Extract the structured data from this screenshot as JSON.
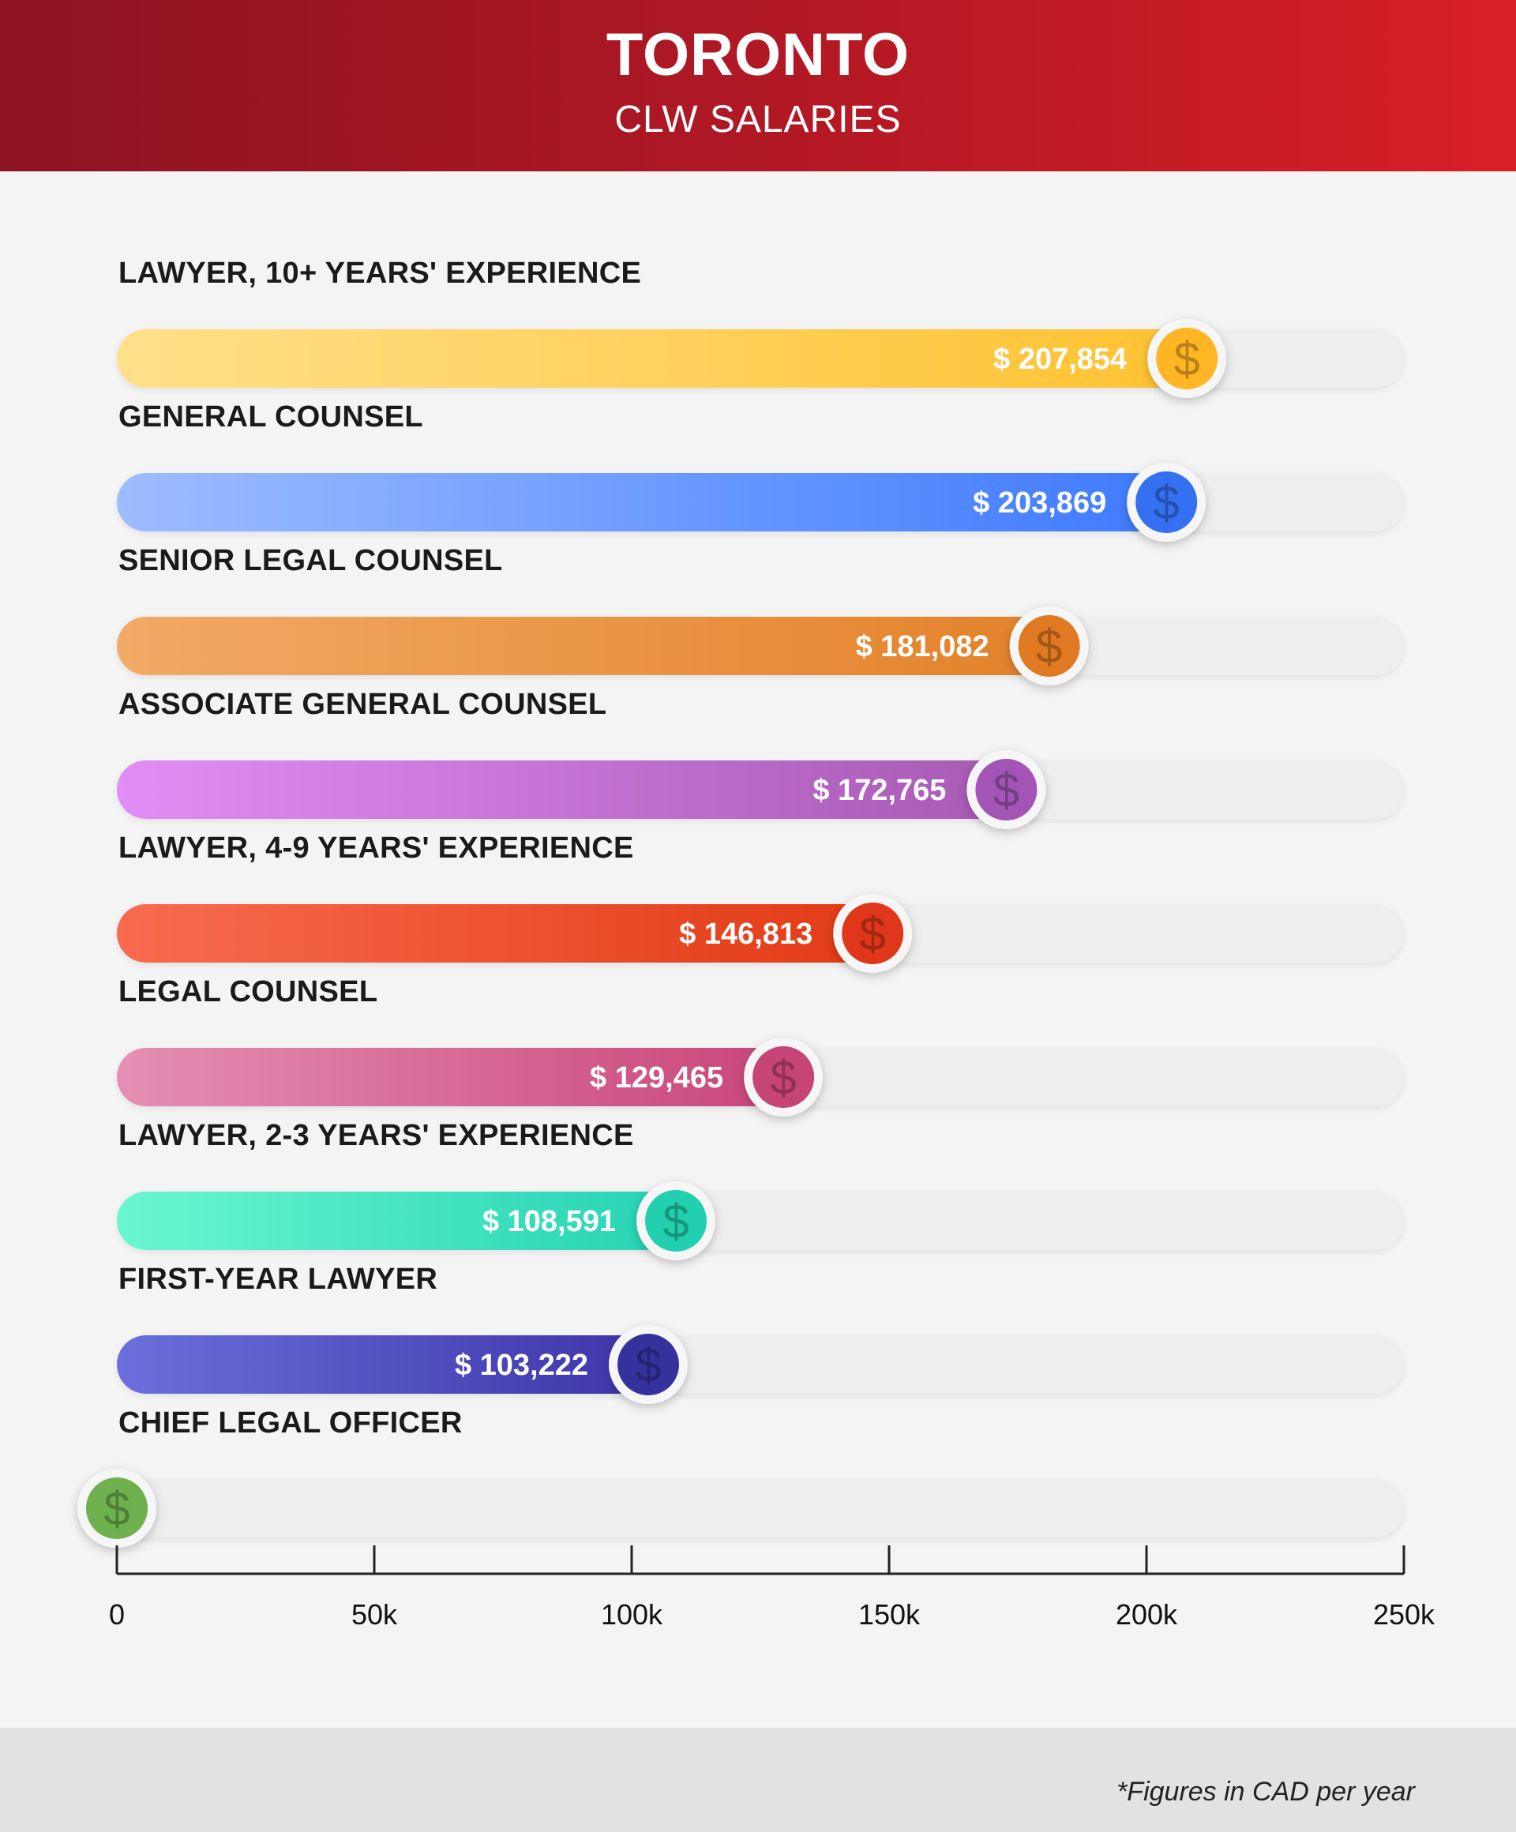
{
  "header": {
    "title": "TORONTO",
    "subtitle": "CLW SALARIES"
  },
  "chart_data": {
    "type": "bar",
    "orientation": "horizontal",
    "title": "TORONTO",
    "subtitle": "CLW SALARIES",
    "xlim": [
      0,
      250000
    ],
    "ticks": [
      {
        "value": 0,
        "label": "0"
      },
      {
        "value": 50000,
        "label": "50k"
      },
      {
        "value": 100000,
        "label": "100k"
      },
      {
        "value": 150000,
        "label": "150k"
      },
      {
        "value": 200000,
        "label": "200k"
      },
      {
        "value": 250000,
        "label": "250k"
      }
    ],
    "bars": [
      {
        "category": "LAWYER, 10+ YEARS' EXPERIENCE",
        "value": 207854,
        "label": "$ 207,854",
        "color_start": "#ffe08a",
        "color_end": "#ffc232",
        "icon_color": "#ffb524"
      },
      {
        "category": "GENERAL COUNSEL",
        "value": 203869,
        "label": "$ 203,869",
        "color_start": "#9ebcff",
        "color_end": "#3f7bff",
        "icon_color": "#3570f2"
      },
      {
        "category": "SENIOR LEGAL COUNSEL",
        "value": 181082,
        "label": "$ 181,082",
        "color_start": "#f2aa66",
        "color_end": "#e3822a",
        "icon_color": "#e07a22"
      },
      {
        "category": "ASSOCIATE GENERAL COUNSEL",
        "value": 172765,
        "label": "$ 172,765",
        "color_start": "#e18df5",
        "color_end": "#a85ab4",
        "icon_color": "#a355b6"
      },
      {
        "category": "LAWYER, 4-9 YEARS' EXPERIENCE",
        "value": 146813,
        "label": "$ 146,813",
        "color_start": "#f86b4e",
        "color_end": "#e23b16",
        "icon_color": "#e0361a"
      },
      {
        "category": "LEGAL COUNSEL",
        "value": 129465,
        "label": "$ 129,465",
        "color_start": "#e58fb4",
        "color_end": "#c9467a",
        "icon_color": "#c64476"
      },
      {
        "category": "LAWYER, 2-3 YEARS' EXPERIENCE",
        "value": 108591,
        "label": "$ 108,591",
        "color_start": "#6af7d0",
        "color_end": "#26d3b3",
        "icon_color": "#22cfae"
      },
      {
        "category": "FIRST-YEAR LAWYER",
        "value": 103222,
        "label": "$ 103,222",
        "color_start": "#6b6fdc",
        "color_end": "#3e35a8",
        "icon_color": "#35329e"
      },
      {
        "category": "CHIEF LEGAL OFFICER",
        "value": 0,
        "label": "",
        "color_start": "#8ccc6a",
        "color_end": "#6fb14f",
        "icon_color": "#6fb14f"
      }
    ],
    "icon": "dollar-icon",
    "track_color": "#eeeeee",
    "grid": false,
    "legend": "none"
  },
  "footer": {
    "note": "*Figures in CAD per year"
  }
}
